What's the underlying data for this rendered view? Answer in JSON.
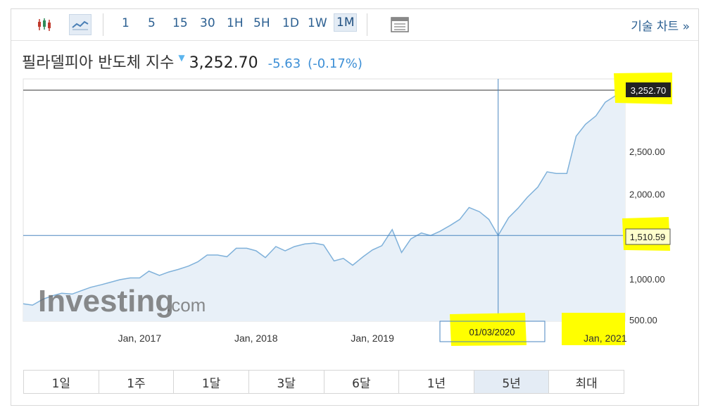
{
  "toolbar": {
    "candle_icon": "candlestick-chart-icon",
    "line_icon": "line-chart-icon",
    "intervals": [
      "1",
      "5",
      "15",
      "30",
      "1H",
      "5H",
      "1D",
      "1W",
      "1M"
    ],
    "selected_interval": "1M",
    "layout_icon": "chart-layout-icon",
    "tech_link": "기술 차트 »"
  },
  "header": {
    "name": "필라델피아 반도체 지수",
    "price": "3,252.70",
    "change": "-5.63",
    "change_pct": "(-0.17%)"
  },
  "watermark": {
    "brand": "Investing",
    "suffix": ".com"
  },
  "crosshair": {
    "date_label": "01/03/2020",
    "value_label": "1,510.59",
    "last_label": "3,252.70"
  },
  "ranges": [
    "1일",
    "1주",
    "1달",
    "3달",
    "6달",
    "1년",
    "5년",
    "최대"
  ],
  "selected_range": "5년",
  "colors": {
    "line": "#7fb1da",
    "fill": "#e8f0f8",
    "highlight": "#ffff00",
    "link": "#2b5f91"
  },
  "chart_data": {
    "type": "area",
    "x_tick_labels": [
      "Jan, 2017",
      "Jan, 2018",
      "Jan, 2019",
      "Jan, 2021"
    ],
    "y_tick_labels": [
      "500.00",
      "1,000.00",
      "2,000.00",
      "2,500.00"
    ],
    "ylim": [
      500,
      3400
    ],
    "series": [
      {
        "values": [
          [
            2016.0,
            705
          ],
          [
            2016.08,
            690
          ],
          [
            2016.17,
            760
          ],
          [
            2016.25,
            800
          ],
          [
            2016.33,
            830
          ],
          [
            2016.42,
            820
          ],
          [
            2016.5,
            860
          ],
          [
            2016.58,
            900
          ],
          [
            2016.67,
            930
          ],
          [
            2016.75,
            960
          ],
          [
            2016.83,
            990
          ],
          [
            2016.92,
            1010
          ],
          [
            2017.0,
            1010
          ],
          [
            2017.08,
            1090
          ],
          [
            2017.17,
            1040
          ],
          [
            2017.25,
            1080
          ],
          [
            2017.33,
            1110
          ],
          [
            2017.42,
            1150
          ],
          [
            2017.5,
            1200
          ],
          [
            2017.58,
            1280
          ],
          [
            2017.67,
            1280
          ],
          [
            2017.75,
            1260
          ],
          [
            2017.83,
            1360
          ],
          [
            2017.92,
            1360
          ],
          [
            2018.0,
            1330
          ],
          [
            2018.08,
            1250
          ],
          [
            2018.17,
            1380
          ],
          [
            2018.25,
            1330
          ],
          [
            2018.33,
            1380
          ],
          [
            2018.42,
            1410
          ],
          [
            2018.5,
            1420
          ],
          [
            2018.58,
            1400
          ],
          [
            2018.67,
            1210
          ],
          [
            2018.75,
            1240
          ],
          [
            2018.83,
            1160
          ],
          [
            2018.92,
            1260
          ],
          [
            2019.0,
            1340
          ],
          [
            2019.08,
            1390
          ],
          [
            2019.17,
            1580
          ],
          [
            2019.25,
            1310
          ],
          [
            2019.33,
            1470
          ],
          [
            2019.42,
            1540
          ],
          [
            2019.5,
            1510
          ],
          [
            2019.58,
            1560
          ],
          [
            2019.67,
            1630
          ],
          [
            2019.75,
            1700
          ],
          [
            2019.83,
            1840
          ],
          [
            2019.92,
            1790
          ],
          [
            2020.0,
            1700
          ],
          [
            2020.08,
            1510
          ],
          [
            2020.17,
            1720
          ],
          [
            2020.25,
            1830
          ],
          [
            2020.33,
            1960
          ],
          [
            2020.42,
            2080
          ],
          [
            2020.5,
            2260
          ],
          [
            2020.58,
            2240
          ],
          [
            2020.67,
            2240
          ],
          [
            2020.75,
            2680
          ],
          [
            2020.83,
            2820
          ],
          [
            2020.92,
            2920
          ],
          [
            2021.0,
            3080
          ],
          [
            2021.08,
            3150
          ],
          [
            2021.17,
            3252.7
          ]
        ]
      }
    ],
    "crosshair_x": 2020.08,
    "crosshair_y": 1510.59,
    "last_value": 3252.7
  }
}
